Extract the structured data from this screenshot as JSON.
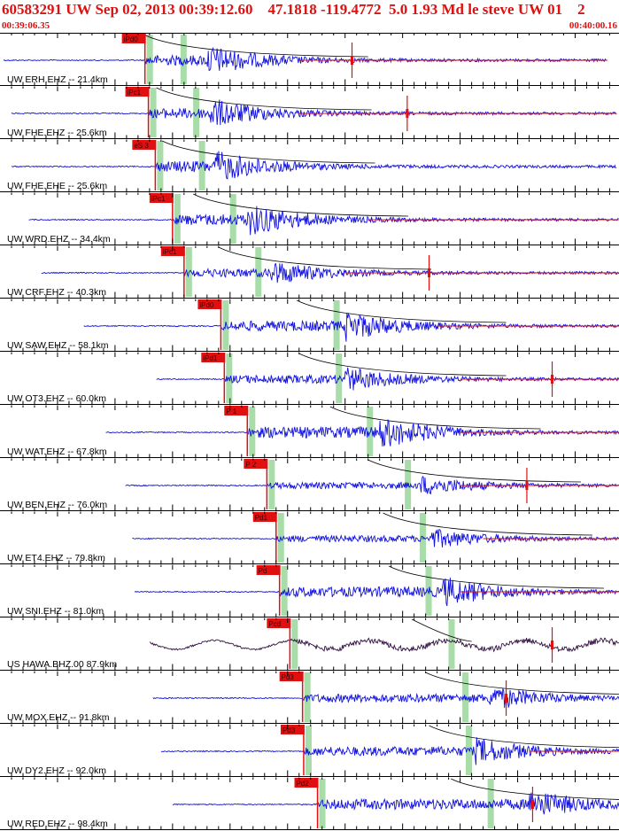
{
  "header": {
    "title": "60583291 UW Sep 02, 2013 00:39:12.60    47.1818 -119.4772  5.0 1.93 Md le steve UW 01    2",
    "start_time": "00:39:06.35",
    "end_time": "00:40:00.16"
  },
  "colors": {
    "trace": "#1010e0",
    "coda": "#e01010",
    "pick": "#e01010",
    "window": "#a8dca8",
    "alt_trace": "#301040",
    "grid": "#000000",
    "curve": "#000000"
  },
  "chart_data": {
    "type": "line",
    "title": "",
    "time_range": [
      "00:39:06.35",
      "00:40:00.16"
    ],
    "stations": [
      {
        "label": "UW ERH.EHZ -- 21.4km",
        "pick": "iPd0",
        "p_time": 12.6,
        "s_time": 16.0,
        "start": 0.3,
        "end": 52.8,
        "peak": 18.0,
        "amp": 0.55,
        "coda_start": 26,
        "red_mark": 30.6
      },
      {
        "label": "UW FHE.EHZ -- 25.6km",
        "pick": "iPc1",
        "p_time": 12.9,
        "s_time": 17.1,
        "start": 1.0,
        "end": 53.6,
        "peak": 18.3,
        "amp": 0.55,
        "coda_start": 26,
        "red_mark": 35.4
      },
      {
        "label": "UW FHE.EHE -- 25.6km",
        "pick": "eS 3",
        "p_time": 13.5,
        "s_time": 17.6,
        "start": 1.0,
        "end": 53.6,
        "peak": 18.6,
        "amp": 0.6,
        "coda_start": 0,
        "red_mark": 0
      },
      {
        "label": "UW WRD.EHZ -- 34.4km",
        "pick": "iPc1",
        "p_time": 15.0,
        "s_time": 20.3,
        "start": 2.5,
        "end": 53.8,
        "peak": 21.5,
        "amp": 0.6,
        "coda_start": 32,
        "red_mark": 54.8
      },
      {
        "label": "UW CRF.EHZ -- 40.3km",
        "pick": "iPc1",
        "p_time": 16.0,
        "s_time": 22.5,
        "start": 3.6,
        "end": 56.3,
        "peak": 23.5,
        "amp": 0.45,
        "coda_start": 30,
        "red_mark": 37.3
      },
      {
        "label": "UW SAW.EHZ -- 58.1km",
        "pick": "iPd0",
        "p_time": 19.2,
        "s_time": 29.3,
        "start": 7.3,
        "end": 61.9,
        "peak": 30.0,
        "amp": 0.55,
        "coda_start": 38,
        "red_mark": 61.2
      },
      {
        "label": "UW OT3.EHZ -- 60.0km",
        "pick": "iPd1",
        "p_time": 19.5,
        "s_time": 29.5,
        "start": 13.6,
        "end": 60.3,
        "peak": 30.0,
        "amp": 0.45,
        "coda_start": 40,
        "red_mark": 48.0
      },
      {
        "label": "UW WAT.EHZ -- 67.8km",
        "pick": "P 1",
        "p_time": 21.5,
        "s_time": 32.2,
        "start": 9.2,
        "end": 61.7,
        "peak": 33.0,
        "amp": 0.6,
        "coda_start": 40,
        "red_mark": 0
      },
      {
        "label": "UW BEN.EHZ -- 76.0km",
        "pick": "P 2",
        "p_time": 23.2,
        "s_time": 35.5,
        "start": 10.9,
        "end": 63.3,
        "peak": 36.5,
        "amp": 0.35,
        "coda_start": 40,
        "red_mark": 45.8
      },
      {
        "label": "UW ET4.EHZ -- 79.8km",
        "pick": "Pd1",
        "p_time": 24.0,
        "s_time": 36.8,
        "start": 11.5,
        "end": 64.3,
        "peak": 37.5,
        "amp": 0.35,
        "coda_start": 42,
        "red_mark": 64.7
      },
      {
        "label": "UW SNI.EHZ -- 81.0km",
        "pick": "Pd",
        "p_time": 24.3,
        "s_time": 37.3,
        "start": 11.7,
        "end": 64.7,
        "peak": 38.5,
        "amp": 0.55,
        "coda_start": 40,
        "red_mark": 62.5
      },
      {
        "label": "US HAWA.BHZ.00 87.9km",
        "pick": "Pcd",
        "p_time": 25.2,
        "s_time": 39.3,
        "start": 13.0,
        "end": 56.0,
        "peak": 27.0,
        "amp": 0.35,
        "coda_start": 0,
        "red_mark": 48.0
      },
      {
        "label": "UW MOX.EHZ -- 91.8km",
        "pick": "Pd3",
        "p_time": 26.3,
        "s_time": 40.5,
        "start": 13.3,
        "end": 65.5,
        "peak": 42.5,
        "amp": 0.45,
        "coda_start": 0,
        "red_mark": 44.0
      },
      {
        "label": "UW DY2.EHZ -- 92.0km",
        "pick": "Pd3",
        "p_time": 26.4,
        "s_time": 40.8,
        "start": 14.0,
        "end": 66.4,
        "peak": 41.3,
        "amp": 0.5,
        "coda_start": 46,
        "red_mark": 58.8
      },
      {
        "label": "UW RED.EHZ -- 98.4km",
        "pick": "Pd2",
        "p_time": 27.6,
        "s_time": 42.7,
        "start": 15.0,
        "end": 67.0,
        "peak": 46.0,
        "amp": 0.55,
        "coda_start": 0,
        "red_mark": 46.3
      }
    ]
  }
}
